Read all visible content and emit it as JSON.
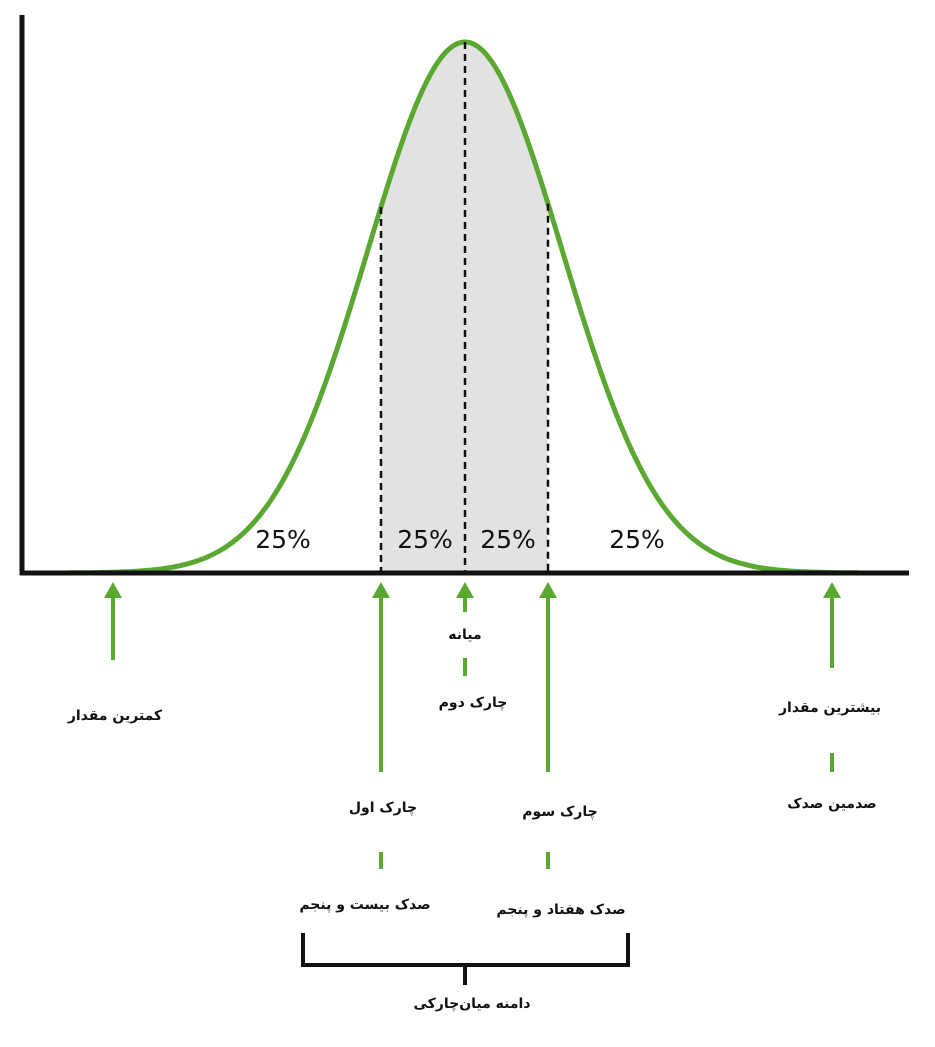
{
  "percent_labels": [
    "25%",
    "25%",
    "25%",
    "25%"
  ],
  "markers": [
    {
      "label": "کمترین مقدار"
    },
    {
      "label": "چارک اول",
      "sublabel": "صدک بیست و پنجم"
    },
    {
      "label": "میانه",
      "sublabel": "چارک دوم"
    },
    {
      "label": "چارک سوم",
      "sublabel": "صدک هفتاد و پنجم"
    },
    {
      "label": "بیشترین مقدار",
      "sublabel": "صدمین صدک"
    }
  ],
  "bracket_label": "دامنه میان‌چارکی"
}
